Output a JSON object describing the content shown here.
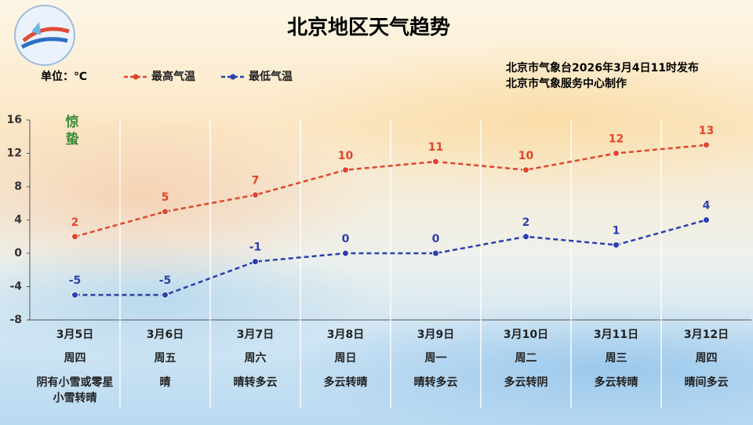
{
  "chart_data": {
    "type": "line",
    "title": "北京地区天气趋势",
    "unit_label": "单位：℃",
    "source": [
      "北京市气象台2026年3月4日11时发布",
      "北京市气象服务中心制作"
    ],
    "annotation": "惊蛰",
    "annotation_color": "#3a8a3a",
    "categories": [
      "3月5日",
      "3月6日",
      "3月7日",
      "3月8日",
      "3月9日",
      "3月10日",
      "3月11日",
      "3月12日"
    ],
    "weekdays": [
      "周四",
      "周五",
      "周六",
      "周日",
      "周一",
      "周二",
      "周三",
      "周四"
    ],
    "weather": [
      "阴有小雪或零星小雪转晴",
      "晴",
      "晴转多云",
      "多云转晴",
      "晴转多云",
      "多云转阴",
      "多云转晴",
      "晴间多云"
    ],
    "series": [
      {
        "name": "最高气温",
        "color": "#e2452a",
        "values": [
          2,
          5,
          7,
          10,
          11,
          10,
          12,
          13
        ]
      },
      {
        "name": "最低气温",
        "color": "#2b3fae",
        "values": [
          -5,
          -5,
          -1,
          0,
          0,
          2,
          1,
          4
        ]
      }
    ],
    "ylim": [
      -8,
      16
    ],
    "yticks": [
      -8,
      -4,
      0,
      4,
      8,
      12,
      16
    ]
  }
}
